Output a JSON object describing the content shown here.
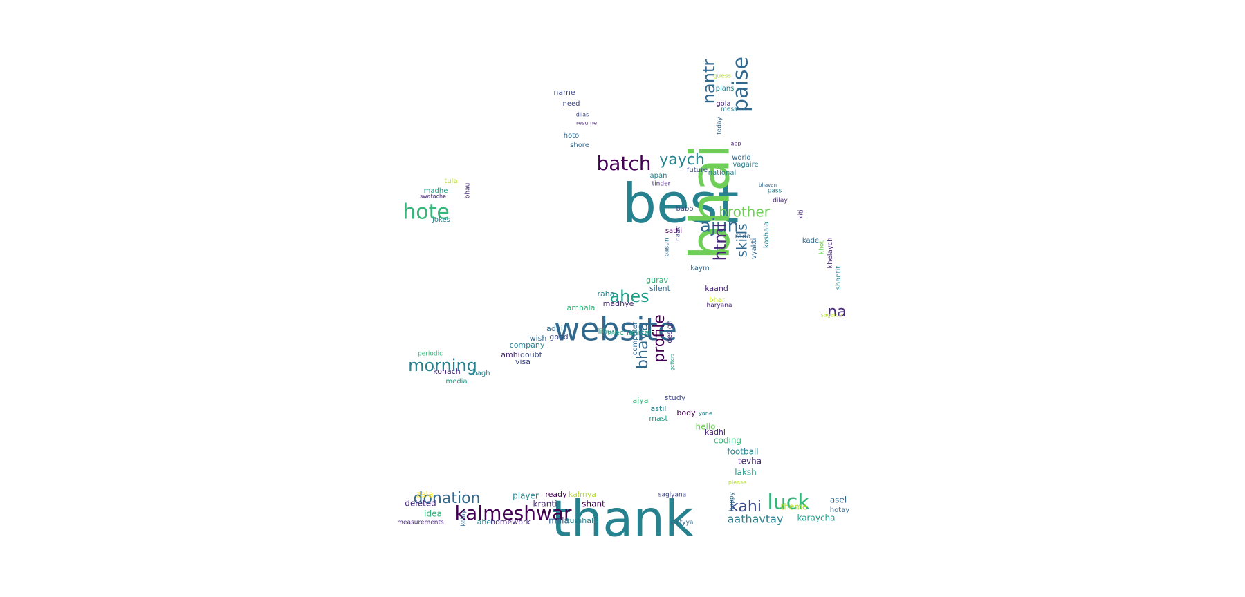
{
  "palette": [
    "#440154",
    "#482878",
    "#3e4989",
    "#31688e",
    "#26828e",
    "#1f9e89",
    "#35b779",
    "#6ece58",
    "#b5de2b",
    "#fde725"
  ],
  "words": [
    {
      "t": "thank",
      "c": 4
    },
    {
      "t": "best",
      "c": 4
    },
    {
      "t": "bhai",
      "c": 7
    },
    {
      "t": "website",
      "c": 3
    },
    {
      "t": "kalmeshwar",
      "c": 0
    },
    {
      "t": "batch",
      "c": 0
    },
    {
      "t": "luck",
      "c": 6
    },
    {
      "t": "donation",
      "c": 3
    },
    {
      "t": "ajun",
      "c": 3
    },
    {
      "t": "hote",
      "c": 6
    },
    {
      "t": "morning",
      "c": 4
    },
    {
      "t": "ahes",
      "c": 5
    },
    {
      "t": "paise",
      "c": 3
    },
    {
      "t": "nantr",
      "c": 3
    },
    {
      "t": "yaych",
      "c": 4
    },
    {
      "t": "brother",
      "c": 7
    },
    {
      "t": "html",
      "c": 1
    },
    {
      "t": "skills",
      "c": 3
    },
    {
      "t": "bhaya",
      "c": 3
    },
    {
      "t": "profile",
      "c": 0
    },
    {
      "t": "kahi",
      "c": 2
    },
    {
      "t": "na",
      "c": 1
    },
    {
      "t": "aathavtay",
      "c": 4
    },
    {
      "t": "shant",
      "c": 0
    },
    {
      "t": "kranti",
      "c": 1
    },
    {
      "t": "ready",
      "c": 0
    },
    {
      "t": "kalmya",
      "c": 8
    },
    {
      "t": "player",
      "c": 4
    },
    {
      "t": "zala",
      "c": 9
    },
    {
      "t": "deleted",
      "c": 1
    },
    {
      "t": "idea",
      "c": 6
    },
    {
      "t": "ahet",
      "c": 4
    },
    {
      "t": "homework",
      "c": 1
    },
    {
      "t": "mala",
      "c": 3
    },
    {
      "t": "tumhala",
      "c": 4
    },
    {
      "t": "karaycha",
      "c": 5
    },
    {
      "t": "asel",
      "c": 3
    },
    {
      "t": "hotay",
      "c": 3
    },
    {
      "t": "theme",
      "c": 8
    },
    {
      "t": "football",
      "c": 4
    },
    {
      "t": "tevha",
      "c": 1
    },
    {
      "t": "laksh",
      "c": 5
    },
    {
      "t": "coding",
      "c": 6
    },
    {
      "t": "kadhi",
      "c": 1
    },
    {
      "t": "hello",
      "c": 7
    },
    {
      "t": "mast",
      "c": 5
    },
    {
      "t": "body",
      "c": 0
    },
    {
      "t": "study",
      "c": 2
    },
    {
      "t": "ajya",
      "c": 6
    },
    {
      "t": "astil",
      "c": 4
    },
    {
      "t": "computer",
      "c": 3
    },
    {
      "t": "design",
      "c": 1
    },
    {
      "t": "visa",
      "c": 2
    },
    {
      "t": "konach",
      "c": 1
    },
    {
      "t": "bagh",
      "c": 4
    },
    {
      "t": "media",
      "c": 5
    },
    {
      "t": "periodic",
      "c": 6
    },
    {
      "t": "company",
      "c": 4
    },
    {
      "t": "amhi",
      "c": 1
    },
    {
      "t": "doubt",
      "c": 2
    },
    {
      "t": "wish",
      "c": 3
    },
    {
      "t": "good",
      "c": 2
    },
    {
      "t": "adhi",
      "c": 3
    },
    {
      "t": "amhala",
      "c": 6
    },
    {
      "t": "raha",
      "c": 4
    },
    {
      "t": "madhye",
      "c": 1
    },
    {
      "t": "lihun",
      "c": 5
    },
    {
      "t": "mechanical",
      "c": 5
    },
    {
      "t": "gurav",
      "c": 6
    },
    {
      "t": "silent",
      "c": 3
    },
    {
      "t": "kaand",
      "c": 1
    },
    {
      "t": "bhari",
      "c": 8
    },
    {
      "t": "haryana",
      "c": 1
    },
    {
      "t": "kaym",
      "c": 3
    },
    {
      "t": "sathi",
      "c": 0
    },
    {
      "t": "rada",
      "c": 3
    },
    {
      "t": "vyakti",
      "c": 3
    },
    {
      "t": "kashala",
      "c": 4
    },
    {
      "t": "babo",
      "c": 2
    },
    {
      "t": "apan",
      "c": 4
    },
    {
      "t": "tinder",
      "c": 1
    },
    {
      "t": "future",
      "c": 2
    },
    {
      "t": "national",
      "c": 4
    },
    {
      "t": "vagaire",
      "c": 4
    },
    {
      "t": "world",
      "c": 3
    },
    {
      "t": "gola",
      "c": 1
    },
    {
      "t": "mess",
      "c": 4
    },
    {
      "t": "plans",
      "c": 4
    },
    {
      "t": "guess",
      "c": 8
    },
    {
      "t": "today",
      "c": 3
    },
    {
      "t": "kade",
      "c": 3
    },
    {
      "t": "khelaych",
      "c": 1
    },
    {
      "t": "shantit",
      "c": 4
    },
    {
      "t": "khot",
      "c": 7
    },
    {
      "t": "kiti",
      "c": 1
    },
    {
      "t": "dilay",
      "c": 1
    },
    {
      "t": "pass",
      "c": 4
    },
    {
      "t": "name",
      "c": 2
    },
    {
      "t": "need",
      "c": 2
    },
    {
      "t": "hoto",
      "c": 3
    },
    {
      "t": "shore",
      "c": 3
    },
    {
      "t": "resume",
      "c": 1
    },
    {
      "t": "dilas",
      "c": 2
    },
    {
      "t": "madhe",
      "c": 5
    },
    {
      "t": "tula",
      "c": 8
    },
    {
      "t": "swatache",
      "c": 1
    },
    {
      "t": "bhau",
      "c": 1
    },
    {
      "t": "jokes",
      "c": 4
    },
    {
      "t": "saglyana",
      "c": 2
    },
    {
      "t": "happy",
      "c": 3
    },
    {
      "t": "chityya",
      "c": 3
    },
    {
      "t": "please",
      "c": 8
    },
    {
      "t": "sagaich",
      "c": 8
    },
    {
      "t": "measurements",
      "c": 1
    },
    {
      "t": "kelay",
      "c": 3
    },
    {
      "t": "naav",
      "c": 2
    },
    {
      "t": "pasun",
      "c": 3
    },
    {
      "t": "abp",
      "c": 1
    },
    {
      "t": "yane",
      "c": 4
    },
    {
      "t": "bhavan",
      "c": 3
    },
    {
      "t": "getters",
      "c": 5
    }
  ]
}
